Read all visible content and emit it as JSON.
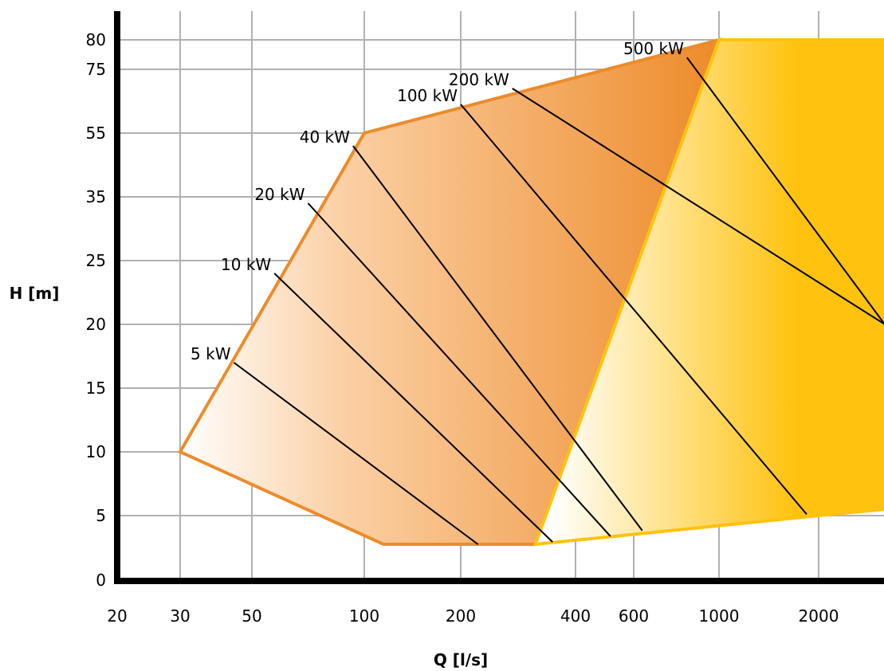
{
  "chart_data": {
    "type": "area",
    "xlabel": "Q [l/s]",
    "ylabel": "H [m]",
    "x_ticks": [
      "20",
      "30",
      "50",
      "100",
      "200",
      "400",
      "600",
      "1000",
      "2000"
    ],
    "y_ticks": [
      "0",
      "5",
      "10",
      "15",
      "20",
      "25",
      "35",
      "55",
      "75",
      "80"
    ],
    "regions": [
      {
        "color": "#ED8B2A",
        "points": [
          [
            30,
            10
          ],
          [
            100,
            55
          ],
          [
            1000,
            80
          ],
          [
            330,
            2.5
          ],
          [
            120,
            2.5
          ],
          [
            30,
            10
          ]
        ]
      },
      {
        "color": "#FFC20E",
        "points": [
          [
            1000,
            80
          ],
          [
            3000,
            80
          ],
          [
            3000,
            5.5
          ],
          [
            2000,
            5
          ],
          [
            330,
            2.5
          ],
          [
            1000,
            80
          ]
        ]
      }
    ],
    "series": [
      {
        "name": "5 kW",
        "points": [
          [
            45,
            17
          ],
          [
            230,
            2.5
          ]
        ]
      },
      {
        "name": "10 kW",
        "points": [
          [
            60,
            24
          ],
          [
            360,
            2.7
          ]
        ]
      },
      {
        "name": "20 kW",
        "points": [
          [
            75,
            34
          ],
          [
            520,
            3.2
          ]
        ]
      },
      {
        "name": "40 kW",
        "points": [
          [
            95,
            51
          ],
          [
            640,
            3.7
          ]
        ]
      },
      {
        "name": "100 kW",
        "points": [
          [
            200,
            64
          ],
          [
            1880,
            5.1
          ]
        ]
      },
      {
        "name": "200 kW",
        "points": [
          [
            290,
            69
          ],
          [
            3000,
            20
          ]
        ]
      },
      {
        "name": "500 kW",
        "points": [
          [
            850,
            77
          ],
          [
            3000,
            20
          ]
        ]
      }
    ],
    "colors": {
      "orange": "#ED8B2A",
      "yellow": "#FFC20E",
      "grid": "#b0b0b0"
    }
  }
}
